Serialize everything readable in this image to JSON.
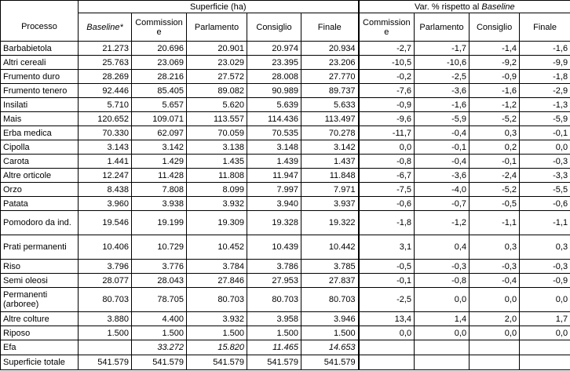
{
  "header": {
    "group_left": "Superficie (ha)",
    "group_right_prefix": "Var. % rispetto al ",
    "group_right_italic": "Baseline",
    "col_processo": "Processo",
    "col_baseline": "Baseline*",
    "col_commissione": "Commissione",
    "col_parlamento": "Parlamento",
    "col_consiglio": "Consiglio",
    "col_finale": "Finale",
    "col_commissione_var": "Commissione",
    "col_parlamento_var": "Parlamento",
    "col_consiglio_var": "Consiglio",
    "col_finale_var": "Finale"
  },
  "rows": [
    {
      "processo": "Barbabietola",
      "baseline": "21.273",
      "commissione": "20.696",
      "parlamento": "20.901",
      "consiglio": "20.974",
      "finale": "20.934",
      "v_commissione": "-2,7",
      "v_parlamento": "-1,7",
      "v_consiglio": "-1,4",
      "v_finale": "-1,6"
    },
    {
      "processo": "Altri cereali",
      "baseline": "25.763",
      "commissione": "23.069",
      "parlamento": "23.029",
      "consiglio": "23.395",
      "finale": "23.206",
      "v_commissione": "-10,5",
      "v_parlamento": "-10,6",
      "v_consiglio": "-9,2",
      "v_finale": "-9,9"
    },
    {
      "processo": "Frumento duro",
      "baseline": "28.269",
      "commissione": "28.216",
      "parlamento": "27.572",
      "consiglio": "28.008",
      "finale": "27.770",
      "v_commissione": "-0,2",
      "v_parlamento": "-2,5",
      "v_consiglio": "-0,9",
      "v_finale": "-1,8"
    },
    {
      "processo": "Frumento tenero",
      "baseline": "92.446",
      "commissione": "85.405",
      "parlamento": "89.082",
      "consiglio": "90.989",
      "finale": "89.737",
      "v_commissione": "-7,6",
      "v_parlamento": "-3,6",
      "v_consiglio": "-1,6",
      "v_finale": "-2,9"
    },
    {
      "processo": "Insilati",
      "baseline": "5.710",
      "commissione": "5.657",
      "parlamento": "5.620",
      "consiglio": "5.639",
      "finale": "5.633",
      "v_commissione": "-0,9",
      "v_parlamento": "-1,6",
      "v_consiglio": "-1,2",
      "v_finale": "-1,3"
    },
    {
      "processo": "Mais",
      "baseline": "120.652",
      "commissione": "109.071",
      "parlamento": "113.557",
      "consiglio": "114.436",
      "finale": "113.497",
      "v_commissione": "-9,6",
      "v_parlamento": "-5,9",
      "v_consiglio": "-5,2",
      "v_finale": "-5,9"
    },
    {
      "processo": "Erba medica",
      "baseline": "70.330",
      "commissione": "62.097",
      "parlamento": "70.059",
      "consiglio": "70.535",
      "finale": "70.278",
      "v_commissione": "-11,7",
      "v_parlamento": "-0,4",
      "v_consiglio": "0,3",
      "v_finale": "-0,1"
    },
    {
      "processo": "Cipolla",
      "baseline": "3.143",
      "commissione": "3.142",
      "parlamento": "3.138",
      "consiglio": "3.148",
      "finale": "3.142",
      "v_commissione": "0,0",
      "v_parlamento": "-0,1",
      "v_consiglio": "0,2",
      "v_finale": "0,0"
    },
    {
      "processo": "Carota",
      "baseline": "1.441",
      "commissione": "1.429",
      "parlamento": "1.435",
      "consiglio": "1.439",
      "finale": "1.437",
      "v_commissione": "-0,8",
      "v_parlamento": "-0,4",
      "v_consiglio": "-0,1",
      "v_finale": "-0,3"
    },
    {
      "processo": "Altre orticole",
      "baseline": "12.247",
      "commissione": "11.428",
      "parlamento": "11.808",
      "consiglio": "11.947",
      "finale": "11.848",
      "v_commissione": "-6,7",
      "v_parlamento": "-3,6",
      "v_consiglio": "-2,4",
      "v_finale": "-3,3"
    },
    {
      "processo": "Orzo",
      "baseline": "8.438",
      "commissione": "7.808",
      "parlamento": "8.099",
      "consiglio": "7.997",
      "finale": "7.971",
      "v_commissione": "-7,5",
      "v_parlamento": "-4,0",
      "v_consiglio": "-5,2",
      "v_finale": "-5,5"
    },
    {
      "processo": "Patata",
      "baseline": "3.960",
      "commissione": "3.938",
      "parlamento": "3.932",
      "consiglio": "3.940",
      "finale": "3.937",
      "v_commissione": "-0,6",
      "v_parlamento": "-0,7",
      "v_consiglio": "-0,5",
      "v_finale": "-0,6"
    },
    {
      "processo": "Pomodoro da ind.",
      "baseline": "19.546",
      "commissione": "19.199",
      "parlamento": "19.309",
      "consiglio": "19.328",
      "finale": "19.322",
      "v_commissione": "-1,8",
      "v_parlamento": "-1,2",
      "v_consiglio": "-1,1",
      "v_finale": "-1,1"
    },
    {
      "processo": "Prati permanenti",
      "baseline": "10.406",
      "commissione": "10.729",
      "parlamento": "10.452",
      "consiglio": "10.439",
      "finale": "10.442",
      "v_commissione": "3,1",
      "v_parlamento": "0,4",
      "v_consiglio": "0,3",
      "v_finale": "0,3"
    },
    {
      "processo": "Riso",
      "baseline": "3.796",
      "commissione": "3.776",
      "parlamento": "3.784",
      "consiglio": "3.786",
      "finale": "3.785",
      "v_commissione": "-0,5",
      "v_parlamento": "-0,3",
      "v_consiglio": "-0,3",
      "v_finale": "-0,3"
    },
    {
      "processo": "Semi oleosi",
      "baseline": "28.077",
      "commissione": "28.043",
      "parlamento": "27.846",
      "consiglio": "27.953",
      "finale": "27.837",
      "v_commissione": "-0,1",
      "v_parlamento": "-0,8",
      "v_consiglio": "-0,4",
      "v_finale": "-0,9"
    },
    {
      "processo": "Permanenti (arboree)",
      "baseline": "80.703",
      "commissione": "78.705",
      "parlamento": "80.703",
      "consiglio": "80.703",
      "finale": "80.703",
      "v_commissione": "-2,5",
      "v_parlamento": "0,0",
      "v_consiglio": "0,0",
      "v_finale": "0,0"
    },
    {
      "processo": "Altre colture",
      "baseline": "3.880",
      "commissione": "4.400",
      "parlamento": "3.932",
      "consiglio": "3.958",
      "finale": "3.946",
      "v_commissione": "13,4",
      "v_parlamento": "1,4",
      "v_consiglio": "2,0",
      "v_finale": "1,7"
    },
    {
      "processo": "Riposo",
      "baseline": "1.500",
      "commissione": "1.500",
      "parlamento": "1.500",
      "consiglio": "1.500",
      "finale": "1.500",
      "v_commissione": "0,0",
      "v_parlamento": "0,0",
      "v_consiglio": "0,0",
      "v_finale": "0,0"
    }
  ],
  "efa": {
    "processo": "Efa",
    "commissione": "33.272",
    "parlamento": "15.820",
    "consiglio": "11.465",
    "finale": "14.653"
  },
  "totale": {
    "processo": "Superficie totale",
    "baseline": "541.579",
    "commissione": "541.579",
    "parlamento": "541.579",
    "consiglio": "541.579",
    "finale": "541.579"
  }
}
